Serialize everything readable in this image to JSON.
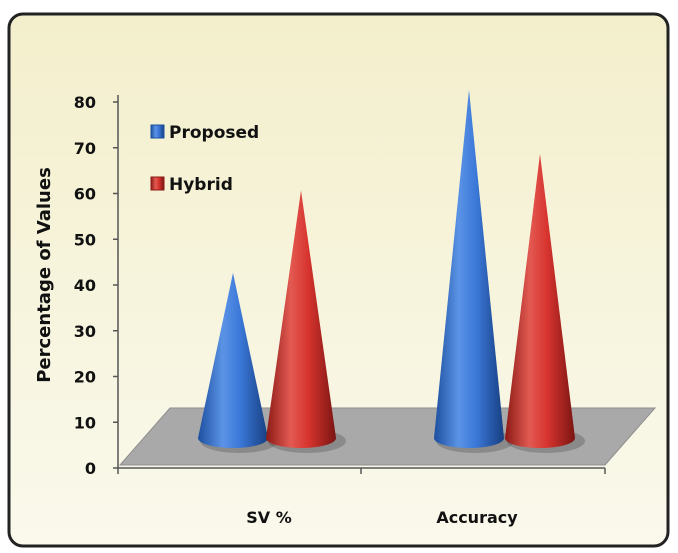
{
  "chart_data": {
    "type": "bar",
    "bar_shape": "cone-3d",
    "categories": [
      "SV %",
      "Accuracy"
    ],
    "series": [
      {
        "name": "Proposed",
        "values": [
          42,
          82
        ],
        "color": "#3b78d8"
      },
      {
        "name": "Hybrid",
        "values": [
          60,
          68
        ],
        "color": "#d8342f"
      }
    ],
    "ylabel": "Percentage of Values",
    "xlabel": "",
    "ylim": [
      0,
      80
    ],
    "yticks": [
      0,
      10,
      20,
      30,
      40,
      50,
      60,
      70,
      80
    ],
    "legend_position": "top-left",
    "grid": false,
    "background_color": "#f6f3d6",
    "floor_color": "#a9a9a9"
  }
}
